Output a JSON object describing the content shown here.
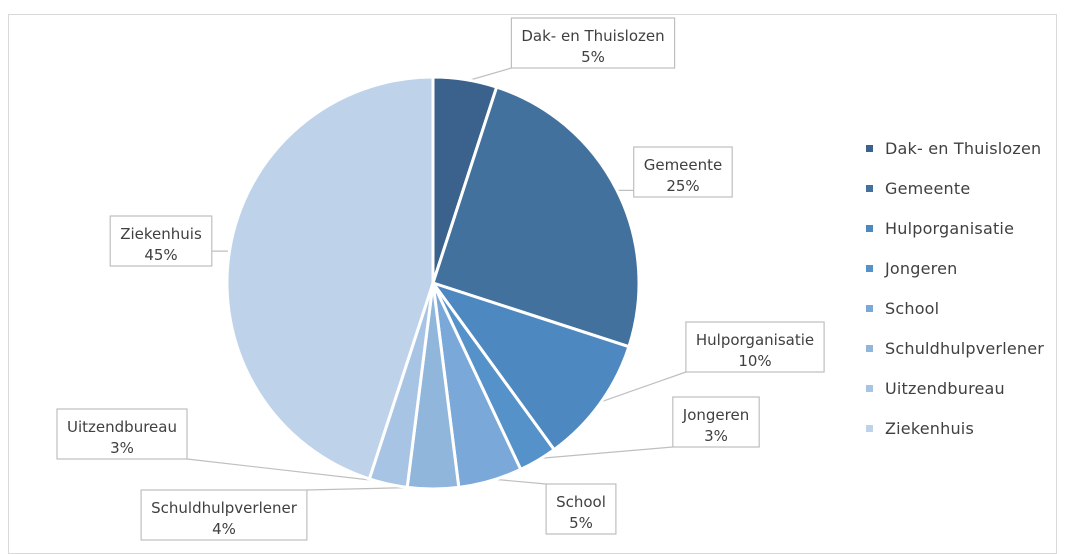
{
  "chart_data": {
    "type": "pie",
    "title": "",
    "slices": [
      {
        "label": "Dak- en Thuislozen",
        "value": 5,
        "value_label": "5%",
        "color": "#3a628c"
      },
      {
        "label": "Gemeente",
        "value": 25,
        "value_label": "25%",
        "color": "#41719c"
      },
      {
        "label": "Hulporganisatie",
        "value": 10,
        "value_label": "10%",
        "color": "#4e88c0"
      },
      {
        "label": "Jongeren",
        "value": 3,
        "value_label": "3%",
        "color": "#5592c9"
      },
      {
        "label": "School",
        "value": 5,
        "value_label": "5%",
        "color": "#7aa8d8"
      },
      {
        "label": "Schuldhulpverlener",
        "value": 4,
        "value_label": "4%",
        "color": "#90b6dc"
      },
      {
        "label": "Uitzendbureau",
        "value": 3,
        "value_label": "3%",
        "color": "#a8c4e4"
      },
      {
        "label": "Ziekenhuis",
        "value": 45,
        "value_label": "45%",
        "color": "#bed2ea"
      }
    ],
    "legend_position": "right",
    "data_labels": "outside with leader lines"
  }
}
